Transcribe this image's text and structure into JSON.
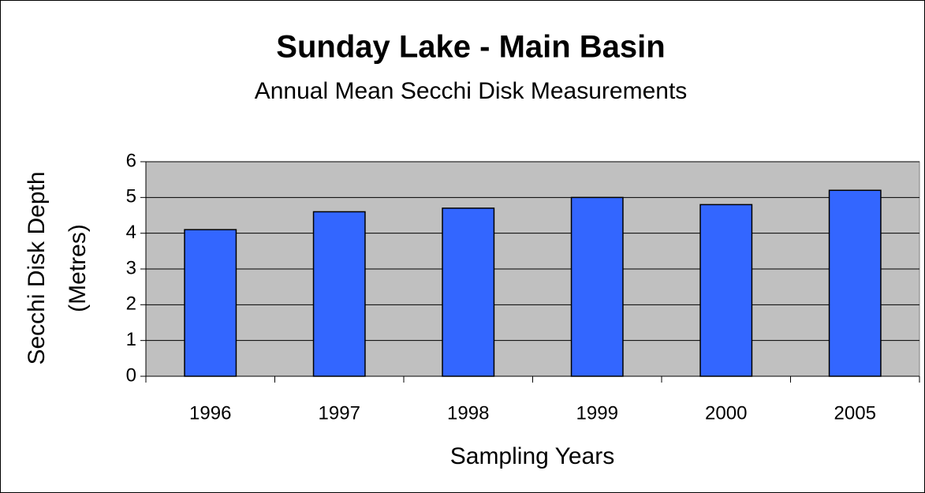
{
  "chart_data": {
    "type": "bar",
    "title": "Sunday Lake - Main Basin",
    "subtitle": "Annual Mean Secchi Disk Measurements",
    "x_label": "Sampling Years",
    "y_label": [
      "Secchi Disk Depth",
      "(Metres)"
    ],
    "categories": [
      "1996",
      "1997",
      "1998",
      "1999",
      "2000",
      "2005"
    ],
    "values": [
      4.1,
      4.6,
      4.7,
      5.0,
      4.8,
      5.2
    ],
    "color": "#3366ff",
    "ylim": [
      0,
      6
    ],
    "yticks": [
      0,
      1,
      2,
      3,
      4,
      5,
      6
    ],
    "grid": true
  }
}
